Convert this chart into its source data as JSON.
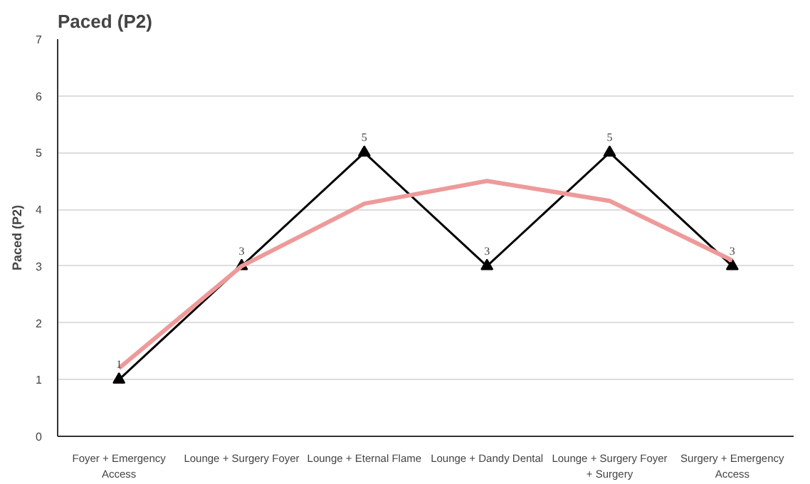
{
  "chart_data": {
    "type": "line",
    "title": "Paced (P2)",
    "ylabel": "Paced (P2)",
    "categories": [
      "Foyer + Emergency Access",
      "Lounge + Surgery Foyer",
      "Lounge + Eternal Flame",
      "Lounge + Dandy Dental",
      "Lounge + Surgery Foyer + Surgery",
      "Surgery + Emergency Access"
    ],
    "series": [
      {
        "color": "#000000",
        "values": [
          1,
          3,
          5,
          3,
          5,
          3
        ],
        "value_labels": [
          "1",
          "3",
          "5",
          "3",
          "5",
          "3"
        ],
        "marker": "triangle"
      },
      {
        "type": "line",
        "color": "#ee9a9a",
        "marker": "none",
        "values": [
          1.2,
          3.0,
          4.1,
          4.5,
          4.15,
          3.1
        ]
      }
    ],
    "ylim": [
      0,
      7
    ],
    "yticks": [
      0,
      1,
      2,
      3,
      4,
      5,
      6,
      7
    ],
    "grid": "y"
  }
}
